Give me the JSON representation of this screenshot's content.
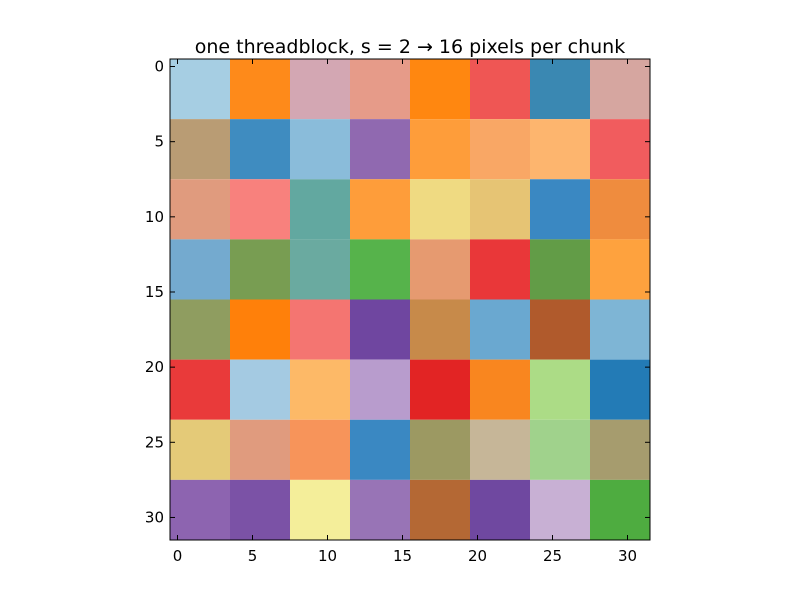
{
  "chart_data": {
    "type": "heatmap",
    "title": "one threadblock, s = 2 → 16 pixels per chunk",
    "xlabel": "",
    "ylabel": "",
    "xlim": [
      -0.5,
      31.5
    ],
    "ylim": [
      31.5,
      -0.5
    ],
    "grid": false,
    "block_size": 4,
    "x_ticks": [
      0,
      5,
      10,
      15,
      20,
      25,
      30
    ],
    "y_ticks": [
      0,
      5,
      10,
      15,
      20,
      25,
      30
    ],
    "x_tick_labels": [
      "0",
      "5",
      "10",
      "15",
      "20",
      "25",
      "30"
    ],
    "y_tick_labels": [
      "0",
      "5",
      "10",
      "15",
      "20",
      "25",
      "30"
    ],
    "cell_colors": [
      [
        "#a6cee3",
        "#fe8a1a",
        "#d3a7b3",
        "#e69b89",
        "#ff8710",
        "#ef5654",
        "#3a88b2",
        "#d6a6a0"
      ],
      [
        "#b99c74",
        "#3f8cc0",
        "#8abcda",
        "#9069b0",
        "#fe9d3a",
        "#f9a765",
        "#fdb56e",
        "#f15c5e"
      ],
      [
        "#e09b7e",
        "#f8817d",
        "#62a8a0",
        "#fe9d3a",
        "#efda82",
        "#e6c474",
        "#3a88c2",
        "#ef8c3e"
      ],
      [
        "#74aacf",
        "#789d52",
        "#6aaaa0",
        "#56b34b",
        "#e69a70",
        "#e93739",
        "#629c47",
        "#fea23e"
      ],
      [
        "#8f9d60",
        "#ff800a",
        "#f47571",
        "#6f46a0",
        "#c78a4a",
        "#6aa8d0",
        "#b05a2c",
        "#7eb5d5"
      ],
      [
        "#e93a3a",
        "#a4cae2",
        "#fdb967",
        "#b89ccd",
        "#e22424",
        "#f9861f",
        "#acdc86",
        "#237bb6"
      ],
      [
        "#e4ca78",
        "#e09b7e",
        "#f7945a",
        "#3a88c2",
        "#9c9962",
        "#c6b698",
        "#a0d28c",
        "#a69c6e"
      ],
      [
        "#8d64b0",
        "#7b52a6",
        "#f4ee9a",
        "#9874b6",
        "#b46834",
        "#6f48a0",
        "#c8b0d4",
        "#4eac40"
      ]
    ]
  }
}
